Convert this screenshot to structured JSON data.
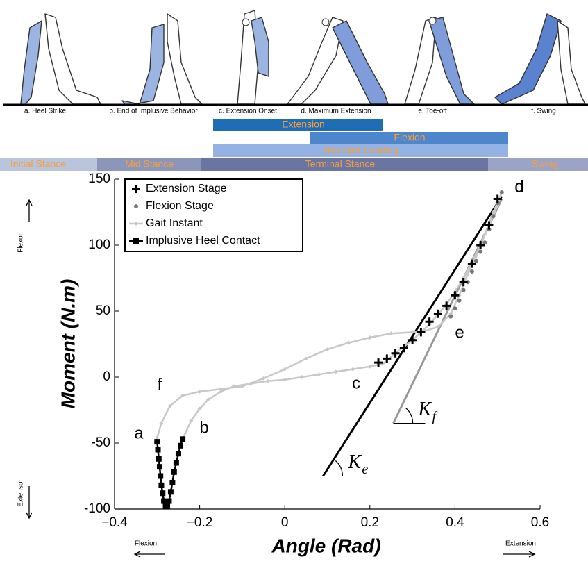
{
  "gait_figure": {
    "phases": [
      "a. Heel Strike",
      "b. End of Implusive Behavior",
      "c. Extension Onset",
      "d. Maximum Extension",
      "e. Toe-off",
      "f. Swing"
    ],
    "stages": [
      "Extension",
      "Flexion",
      "Resilient Loading"
    ],
    "stance": [
      "Initial Stance",
      "Mid Stance",
      "Terminal Stance",
      "Swing"
    ]
  },
  "chart_data": {
    "type": "scatter",
    "xlabel": "Angle (Rad)",
    "ylabel": "Moment (N.m)",
    "xlim": [
      -0.4,
      0.6
    ],
    "ylim": [
      -100,
      150
    ],
    "xticks": [
      {
        "value": -0.4,
        "label": "−0.4"
      },
      {
        "value": -0.2,
        "label": "−0.2"
      },
      0,
      0.2,
      0.4,
      0.6
    ],
    "yticks": [
      {
        "value": -100,
        "label": "-100"
      },
      {
        "value": -50,
        "label": "-50"
      },
      0,
      50,
      100,
      150
    ],
    "direction_labels": {
      "y_top": "Flexor",
      "y_bottom": "Extensor",
      "x_left": "Flexion",
      "x_right": "Extension"
    },
    "annotations": [
      "a",
      "b",
      "c",
      "d",
      "e",
      "f"
    ],
    "stiffness_lines": [
      {
        "label": "K",
        "subscript": "e",
        "color": "#000000",
        "x": [
          0.09,
          0.51
        ],
        "y": [
          -75,
          137
        ],
        "base_x": [
          0.09,
          0.17
        ]
      },
      {
        "label": "K",
        "subscript": "f",
        "color": "#999999",
        "x": [
          0.255,
          0.51
        ],
        "y": [
          -35,
          135
        ],
        "base_x": [
          0.255,
          0.33
        ]
      }
    ],
    "series": [
      {
        "name": "Extension Stage",
        "marker": "plus",
        "color": "#000000",
        "x": [
          0.22,
          0.24,
          0.26,
          0.28,
          0.3,
          0.32,
          0.34,
          0.36,
          0.38,
          0.4,
          0.42,
          0.44,
          0.46,
          0.48,
          0.5
        ],
        "values": [
          11,
          14,
          18,
          22,
          28,
          34,
          42,
          48,
          54,
          62,
          72,
          86,
          100,
          115,
          135
        ]
      },
      {
        "name": "Flexion Stage",
        "marker": "circle",
        "color": "#777777",
        "x": [
          0.51,
          0.5,
          0.49,
          0.48,
          0.47,
          0.46,
          0.45,
          0.44,
          0.43,
          0.42,
          0.41,
          0.4,
          0.39
        ],
        "values": [
          140,
          132,
          122,
          112,
          102,
          95,
          88,
          80,
          72,
          66,
          58,
          52,
          46
        ]
      },
      {
        "name": "Gait Instant",
        "marker": "diamond",
        "color": "#c8c8c8",
        "x": [
          -0.24,
          -0.22,
          -0.2,
          -0.18,
          -0.15,
          -0.12,
          -0.08,
          -0.04,
          0.0,
          0.04,
          0.08,
          0.12,
          0.16,
          0.2,
          0.23,
          0.26,
          0.3,
          0.34,
          0.38,
          0.42,
          0.46,
          0.5,
          0.51,
          0.49,
          0.47,
          0.45,
          0.43,
          0.41,
          0.39,
          0.36,
          0.33,
          0.3,
          0.25,
          0.2,
          0.15,
          0.1,
          0.05,
          0.0,
          -0.05,
          -0.1,
          -0.15,
          -0.2,
          -0.24,
          -0.27,
          -0.29,
          -0.3
        ],
        "values": [
          -47,
          -33,
          -24,
          -17,
          -11,
          -7,
          -5,
          -3,
          -2,
          0,
          2,
          4,
          6,
          8,
          10,
          18,
          28,
          40,
          55,
          75,
          100,
          130,
          140,
          125,
          108,
          92,
          78,
          62,
          48,
          38,
          35,
          34,
          33,
          30,
          26,
          21,
          14,
          6,
          -1,
          -7,
          -9,
          -11,
          -14,
          -22,
          -35,
          -46
        ]
      },
      {
        "name": "Implusive Heel Contact",
        "marker": "square",
        "color": "#000000",
        "x": [
          -0.3,
          -0.298,
          -0.296,
          -0.294,
          -0.292,
          -0.29,
          -0.287,
          -0.284,
          -0.28,
          -0.276,
          -0.272,
          -0.268,
          -0.264,
          -0.26,
          -0.255,
          -0.25,
          -0.245,
          -0.24
        ],
        "values": [
          -49,
          -55,
          -62,
          -68,
          -75,
          -82,
          -88,
          -94,
          -98,
          -98,
          -94,
          -87,
          -80,
          -72,
          -65,
          -58,
          -52,
          -47
        ]
      }
    ]
  }
}
